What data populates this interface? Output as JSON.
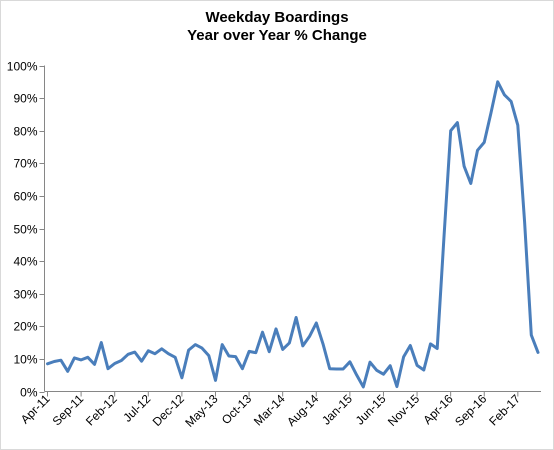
{
  "chart_data": {
    "type": "line",
    "title": [
      "Weekday Boardings",
      "Year over Year % Change"
    ],
    "xlabel": "",
    "ylabel": "",
    "ylim": [
      0,
      100
    ],
    "y_ticks": [
      0,
      10,
      20,
      30,
      40,
      50,
      60,
      70,
      80,
      90,
      100
    ],
    "y_tick_labels": [
      "0%",
      "10%",
      "20%",
      "30%",
      "40%",
      "50%",
      "60%",
      "70%",
      "80%",
      "90%",
      "100%"
    ],
    "x_tick_labels": [
      "Apr-11",
      "Sep-11",
      "Feb-12",
      "Jul-12",
      "Dec-12",
      "May-13",
      "Oct-13",
      "Mar-14",
      "Aug-14",
      "Jan-15",
      "Jun-15",
      "Nov-15",
      "Apr-16",
      "Sep-16",
      "Feb-17"
    ],
    "x_tick_months": [
      "2011-04",
      "2011-09",
      "2012-02",
      "2012-07",
      "2012-12",
      "2013-05",
      "2013-10",
      "2014-03",
      "2014-08",
      "2015-01",
      "2015-06",
      "2015-11",
      "2016-04",
      "2016-09",
      "2017-02"
    ],
    "grid": false,
    "legend": "none",
    "line_color": "#4a7ebb",
    "series": [
      {
        "x": [
          "2011-04",
          "2011-05",
          "2011-06",
          "2011-07",
          "2011-08",
          "2011-09",
          "2011-10",
          "2011-11",
          "2011-12",
          "2012-01",
          "2012-02",
          "2012-03",
          "2012-04",
          "2012-05",
          "2012-06",
          "2012-07",
          "2012-08",
          "2012-09",
          "2012-10",
          "2012-11",
          "2012-12",
          "2013-01",
          "2013-02",
          "2013-03",
          "2013-04",
          "2013-05",
          "2013-06",
          "2013-07",
          "2013-08",
          "2013-09",
          "2013-10",
          "2013-11",
          "2013-12",
          "2014-01",
          "2014-02",
          "2014-03",
          "2014-04",
          "2014-05",
          "2014-06",
          "2014-07",
          "2014-08",
          "2014-09",
          "2014-10",
          "2014-11",
          "2014-12",
          "2015-01",
          "2015-02",
          "2015-03",
          "2015-04",
          "2015-05",
          "2015-06",
          "2015-07",
          "2015-08",
          "2015-09",
          "2015-10",
          "2015-11",
          "2015-12",
          "2016-01",
          "2016-02",
          "2016-03",
          "2016-04",
          "2016-05",
          "2016-06",
          "2016-07",
          "2016-08",
          "2016-09",
          "2016-10",
          "2016-11",
          "2016-12",
          "2017-01",
          "2017-02",
          "2017-03",
          "2017-04",
          "2017-05"
        ],
        "values": [
          8.5,
          9.2,
          9.6,
          6.2,
          10.3,
          9.7,
          10.5,
          8.3,
          15.0,
          7.0,
          8.6,
          9.5,
          11.4,
          12.1,
          9.3,
          12.5,
          11.6,
          13.1,
          11.6,
          10.5,
          4.2,
          12.7,
          14.4,
          13.3,
          11.0,
          3.4,
          14.4,
          10.9,
          10.7,
          7.0,
          12.3,
          11.9,
          18.2,
          12.2,
          19.2,
          12.9,
          14.9,
          22.7,
          14.0,
          16.9,
          21.0,
          14.6,
          7.0,
          6.9,
          6.9,
          9.1,
          5.1,
          1.4,
          9.0,
          6.5,
          5.3,
          7.9,
          1.5,
          10.6,
          14.1,
          8.0,
          6.6,
          14.6,
          13.2,
          47.0,
          80.0,
          82.5,
          69.1,
          63.8,
          74.0,
          76.4,
          85.5,
          95.0,
          91.0,
          89.0,
          81.7,
          52.0,
          17.3,
          12.0
        ]
      }
    ]
  }
}
